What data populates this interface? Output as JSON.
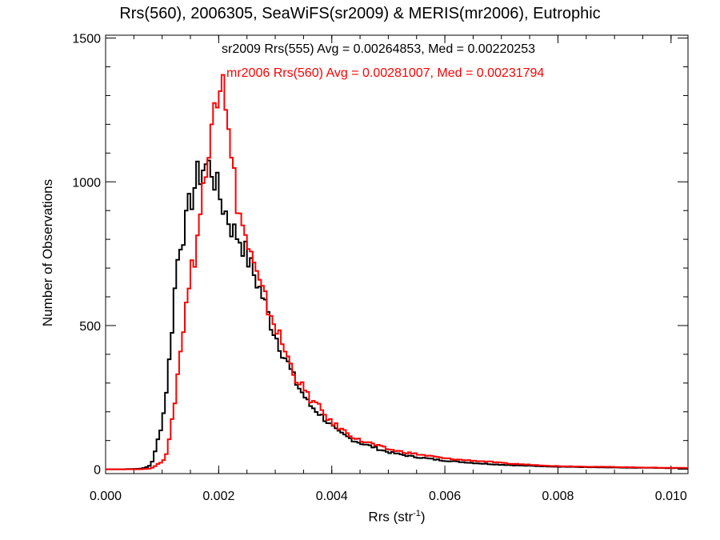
{
  "chart_data": {
    "type": "histogram",
    "title": "Rrs(560), 2006305, SeaWiFS(sr2009) & MERIS(mr2006), Eutrophic",
    "xlabel": "Rrs (str",
    "xlabel_sup": "-1",
    "xlabel_suffix": ")",
    "ylabel": "Number of Observations",
    "xlim": [
      0.0,
      0.0103
    ],
    "ylim": [
      -15,
      1510
    ],
    "xticks": [
      0.0,
      0.002,
      0.004,
      0.006,
      0.008,
      0.01
    ],
    "xtick_labels": [
      "0.000",
      "0.002",
      "0.004",
      "0.006",
      "0.008",
      "0.010"
    ],
    "yticks": [
      0,
      500,
      1000,
      1500
    ],
    "ytick_labels": [
      "0",
      "500",
      "1000",
      "1500"
    ],
    "grid": false,
    "annotations": [
      "sr2009 Rrs(555) Avg = 0.00264853, Med = 0.00220253",
      "mr2006 Rrs(560) Avg = 0.00281007, Med = 0.00231794"
    ],
    "series": [
      {
        "color": "#000000",
        "x": [
          0.0,
          0.0003,
          0.0006,
          0.0007,
          0.0008,
          0.00085,
          0.0009,
          0.00095,
          0.001,
          0.00105,
          0.0011,
          0.00115,
          0.0012,
          0.00125,
          0.0013,
          0.00135,
          0.0014,
          0.00145,
          0.0015,
          0.00155,
          0.0016,
          0.00165,
          0.0017,
          0.00175,
          0.0018,
          0.00185,
          0.0019,
          0.00195,
          0.002,
          0.00205,
          0.0021,
          0.00215,
          0.0022,
          0.00225,
          0.0023,
          0.00235,
          0.0024,
          0.0025,
          0.0026,
          0.0027,
          0.0028,
          0.0029,
          0.003,
          0.0031,
          0.0032,
          0.0033,
          0.0034,
          0.0035,
          0.0036,
          0.0037,
          0.0038,
          0.0039,
          0.004,
          0.0041,
          0.0042,
          0.0043,
          0.0044,
          0.0045,
          0.0046,
          0.0047,
          0.0048,
          0.0049,
          0.005,
          0.0052,
          0.0054,
          0.0056,
          0.0058,
          0.006,
          0.0062,
          0.0065,
          0.0068,
          0.007,
          0.0072,
          0.0075,
          0.0078,
          0.008,
          0.0083,
          0.0086,
          0.009,
          0.0093,
          0.0096,
          0.01,
          0.0103
        ],
        "values": [
          0,
          0,
          2,
          5,
          15,
          40,
          80,
          125,
          160,
          230,
          320,
          430,
          560,
          690,
          770,
          820,
          830,
          880,
          935,
          960,
          1010,
          1020,
          1040,
          1060,
          1050,
          1055,
          1035,
          990,
          960,
          930,
          905,
          880,
          860,
          830,
          820,
          810,
          795,
          740,
          690,
          640,
          590,
          520,
          470,
          420,
          380,
          330,
          290,
          260,
          225,
          210,
          190,
          170,
          150,
          130,
          120,
          110,
          100,
          92,
          85,
          80,
          72,
          66,
          60,
          52,
          45,
          40,
          35,
          30,
          27,
          22,
          18,
          16,
          14,
          12,
          10,
          9,
          8,
          7,
          6,
          5,
          5,
          4,
          4
        ]
      },
      {
        "color": "#ff0000",
        "x": [
          0.0,
          0.0003,
          0.0006,
          0.0007,
          0.0008,
          0.00085,
          0.0009,
          0.00095,
          0.001,
          0.00105,
          0.0011,
          0.00115,
          0.0012,
          0.00125,
          0.0013,
          0.00135,
          0.0014,
          0.00145,
          0.0015,
          0.00155,
          0.0016,
          0.00165,
          0.0017,
          0.00175,
          0.0018,
          0.00185,
          0.0019,
          0.00195,
          0.002,
          0.00205,
          0.0021,
          0.00215,
          0.0022,
          0.00225,
          0.0023,
          0.00235,
          0.0024,
          0.0025,
          0.0026,
          0.0027,
          0.0028,
          0.0029,
          0.003,
          0.0031,
          0.0032,
          0.0033,
          0.0034,
          0.0035,
          0.0036,
          0.0037,
          0.0038,
          0.0039,
          0.004,
          0.0041,
          0.0042,
          0.0043,
          0.0044,
          0.0045,
          0.0046,
          0.0047,
          0.0048,
          0.0049,
          0.005,
          0.0052,
          0.0054,
          0.0056,
          0.0058,
          0.006,
          0.0062,
          0.0065,
          0.0068,
          0.007,
          0.0072,
          0.0075,
          0.0078,
          0.008,
          0.0083,
          0.0086,
          0.009,
          0.0093,
          0.0096,
          0.01,
          0.0103
        ],
        "values": [
          0,
          0,
          0,
          1,
          3,
          8,
          15,
          20,
          28,
          40,
          70,
          130,
          200,
          280,
          380,
          430,
          560,
          610,
          680,
          720,
          770,
          860,
          930,
          1000,
          1010,
          1180,
          1370,
          1330,
          1280,
          1450,
          1390,
          1200,
          1100,
          1050,
          960,
          920,
          860,
          790,
          720,
          650,
          600,
          550,
          500,
          450,
          400,
          350,
          310,
          280,
          250,
          230,
          210,
          185,
          160,
          150,
          135,
          125,
          110,
          100,
          95,
          90,
          82,
          76,
          70,
          62,
          56,
          50,
          44,
          38,
          34,
          30,
          26,
          22,
          19,
          16,
          13,
          11,
          10,
          9,
          8,
          7,
          6,
          5,
          5
        ]
      }
    ]
  }
}
